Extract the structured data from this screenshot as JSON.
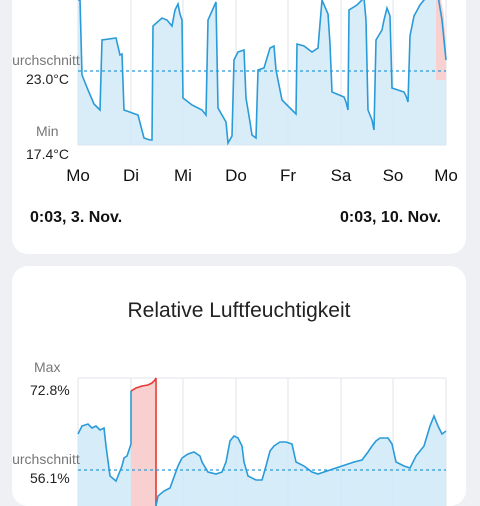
{
  "temperature_card": {
    "avg_label": "Durchschnitt",
    "avg_value": "23.0°C",
    "min_label": "Min",
    "min_value": "17.4°C",
    "days": [
      "Mo",
      "Di",
      "Mi",
      "Do",
      "Fr",
      "Sa",
      "So",
      "Mo"
    ],
    "range_start": "0:03,  3. Nov.",
    "range_end": "0:03,  10. Nov."
  },
  "humidity_card": {
    "title": "Relative Luftfeuchtigkeit",
    "max_label": "Max",
    "max_value": "72.8%",
    "avg_label": "Durchschnitt",
    "avg_value": "56.1%"
  },
  "colors": {
    "line": "#2a9bd8",
    "fill": "#cfe9f8",
    "peak": "#e53935",
    "peak_fill": "#f8d0d0",
    "avg_line": "#2a9bd8",
    "grid": "#dfe3e8"
  }
}
